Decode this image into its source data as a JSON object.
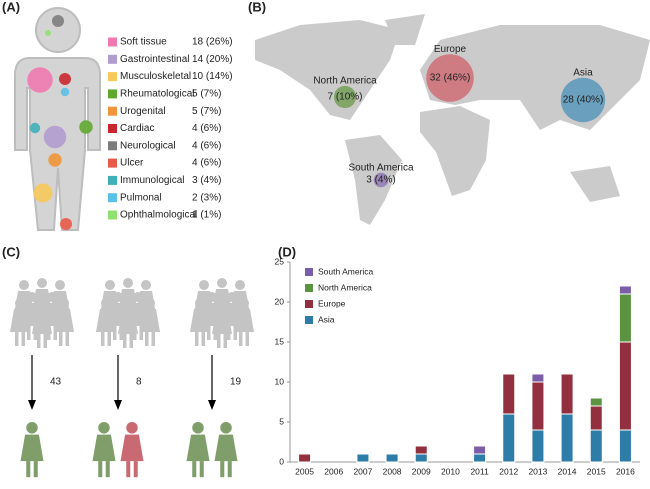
{
  "panel_a": {
    "label": "(A)",
    "items": [
      {
        "name": "Soft tissue",
        "count": 18,
        "label": "18 (26%)",
        "color": "#f07ab0"
      },
      {
        "name": "Gastrointestinal",
        "count": 14,
        "label": "14 (20%)",
        "color": "#b19cd0"
      },
      {
        "name": "Musculoskeletal",
        "count": 10,
        "label": "10 (14%)",
        "color": "#f7c95a"
      },
      {
        "name": "Rheumatological",
        "count": 5,
        "label": "5 (7%)",
        "color": "#5fa830"
      },
      {
        "name": "Urogenital",
        "count": 5,
        "label": "5 (7%)",
        "color": "#f0953a"
      },
      {
        "name": "Cardiac",
        "count": 4,
        "label": "4 (6%)",
        "color": "#c8282d"
      },
      {
        "name": "Neurological",
        "count": 4,
        "label": "4 (6%)",
        "color": "#7d7d7d"
      },
      {
        "name": "Ulcer",
        "count": 4,
        "label": "4 (6%)",
        "color": "#e85a4a"
      },
      {
        "name": "Immunological",
        "count": 3,
        "label": "3 (4%)",
        "color": "#40b0b8"
      },
      {
        "name": "Pulmonal",
        "count": 2,
        "label": "2 (3%)",
        "color": "#5bc0e8"
      },
      {
        "name": "Ophthalmological",
        "count": 1,
        "label": "1 (1%)",
        "color": "#90e070"
      }
    ]
  },
  "panel_b": {
    "label": "(B)",
    "regions": [
      {
        "name": "North America",
        "count": 7,
        "label": "7 (10%)",
        "color": "#6a9a4a"
      },
      {
        "name": "Europe",
        "count": 32,
        "label": "32 (46%)",
        "color": "#d0606a"
      },
      {
        "name": "Asia",
        "count": 28,
        "label": "28 (40%)",
        "color": "#4a90b8"
      },
      {
        "name": "South America",
        "count": 3,
        "label": "3 (4%)",
        "color": "#8a70b0"
      }
    ]
  },
  "panel_c": {
    "label": "(C)",
    "counts": [
      43,
      8,
      19
    ]
  },
  "chart_data": {
    "type": "bar",
    "stacked": true,
    "label": "(D)",
    "categories": [
      "2005",
      "2006",
      "2007",
      "2008",
      "2009",
      "2010",
      "2011",
      "2012",
      "2013",
      "2014",
      "2015",
      "2016"
    ],
    "series": [
      {
        "name": "Asia",
        "color": "#2e7ca8",
        "values": [
          0,
          0,
          1,
          1,
          1,
          0,
          1,
          6,
          4,
          6,
          4,
          4
        ]
      },
      {
        "name": "Europe",
        "color": "#93303f",
        "values": [
          1,
          0,
          0,
          0,
          1,
          0,
          0,
          5,
          6,
          5,
          3,
          11
        ]
      },
      {
        "name": "North America",
        "color": "#5b9440",
        "values": [
          0,
          0,
          0,
          0,
          0,
          0,
          0,
          0,
          0,
          0,
          1,
          6
        ]
      },
      {
        "name": "South America",
        "color": "#7b5ea8",
        "values": [
          0,
          0,
          0,
          0,
          0,
          0,
          1,
          0,
          1,
          0,
          0,
          1
        ]
      }
    ],
    "ylim": [
      0,
      25
    ],
    "yticks": [
      0,
      5,
      10,
      15,
      20,
      25
    ],
    "legend": "top-left"
  }
}
